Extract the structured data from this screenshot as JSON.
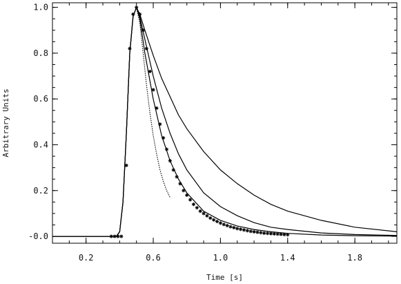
{
  "chart_data": {
    "type": "line",
    "xlabel": "Time [s]",
    "ylabel": "Arbitrary Units",
    "xlim": [
      0.0,
      2.05
    ],
    "ylim": [
      -0.03,
      1.02
    ],
    "x_ticks": [
      0.2,
      0.6,
      1.0,
      1.4,
      1.8
    ],
    "x_tick_labels": [
      "0.2",
      "0.6",
      "1.0",
      "1.4",
      "1.8"
    ],
    "x_minor_step": 0.1,
    "y_ticks": [
      0.0,
      0.2,
      0.4,
      0.6,
      0.8,
      1.0
    ],
    "y_tick_labels": [
      "-0.0",
      "0.2",
      "0.4",
      "0.6",
      "0.8",
      "1.0"
    ],
    "y_minor_step": 0.05,
    "grid": false,
    "legend": "none",
    "series": [
      {
        "style": "markers",
        "marker": "asterisk",
        "x": [
          0.35,
          0.37,
          0.39,
          0.41,
          0.44,
          0.46,
          0.48,
          0.5,
          0.52,
          0.54,
          0.56,
          0.58,
          0.6,
          0.62,
          0.64,
          0.66,
          0.68,
          0.7,
          0.72,
          0.74,
          0.76,
          0.78,
          0.8,
          0.82,
          0.84,
          0.86,
          0.88,
          0.9,
          0.92,
          0.94,
          0.96,
          0.98,
          1.0,
          1.02,
          1.04,
          1.06,
          1.08,
          1.1,
          1.12,
          1.14,
          1.16,
          1.18,
          1.2,
          1.22,
          1.24,
          1.26,
          1.28,
          1.3,
          1.32,
          1.34,
          1.36,
          1.38,
          1.4
        ],
        "y": [
          0.0,
          0.0,
          0.0,
          0.0,
          0.31,
          0.82,
          0.97,
          1.0,
          0.97,
          0.9,
          0.82,
          0.72,
          0.64,
          0.56,
          0.49,
          0.43,
          0.38,
          0.33,
          0.29,
          0.26,
          0.23,
          0.2,
          0.18,
          0.16,
          0.14,
          0.125,
          0.11,
          0.1,
          0.09,
          0.08,
          0.072,
          0.065,
          0.058,
          0.052,
          0.047,
          0.042,
          0.038,
          0.034,
          0.031,
          0.028,
          0.025,
          0.022,
          0.02,
          0.018,
          0.016,
          0.014,
          0.013,
          0.012,
          0.011,
          0.01,
          0.009,
          0.008,
          0.007
        ]
      },
      {
        "style": "solid",
        "x": [
          0.0,
          0.38,
          0.4,
          0.42,
          0.44,
          0.46,
          0.48,
          0.5,
          0.52,
          0.55,
          0.6,
          0.65,
          0.7,
          0.75,
          0.8,
          0.9,
          1.0,
          1.1,
          1.2,
          1.3,
          1.4,
          1.6,
          1.8,
          2.05
        ],
        "y": [
          0.0,
          0.0,
          0.02,
          0.15,
          0.45,
          0.8,
          0.96,
          1.0,
          0.97,
          0.9,
          0.79,
          0.69,
          0.61,
          0.53,
          0.47,
          0.37,
          0.29,
          0.23,
          0.18,
          0.14,
          0.11,
          0.07,
          0.04,
          0.02
        ]
      },
      {
        "style": "solid",
        "x": [
          0.0,
          0.38,
          0.4,
          0.42,
          0.44,
          0.46,
          0.48,
          0.5,
          0.52,
          0.55,
          0.6,
          0.65,
          0.7,
          0.75,
          0.8,
          0.9,
          1.0,
          1.1,
          1.2,
          1.3,
          1.4,
          1.6,
          1.8,
          2.05
        ],
        "y": [
          0.0,
          0.0,
          0.02,
          0.15,
          0.45,
          0.8,
          0.96,
          1.0,
          0.96,
          0.86,
          0.7,
          0.56,
          0.45,
          0.36,
          0.29,
          0.19,
          0.13,
          0.09,
          0.06,
          0.04,
          0.03,
          0.015,
          0.008,
          0.004
        ]
      },
      {
        "style": "solid",
        "x": [
          0.0,
          0.38,
          0.4,
          0.42,
          0.44,
          0.46,
          0.48,
          0.5,
          0.52,
          0.55,
          0.6,
          0.65,
          0.7,
          0.75,
          0.8,
          0.9,
          1.0,
          1.1,
          1.2,
          1.3,
          1.4,
          1.6,
          1.8,
          2.05
        ],
        "y": [
          0.0,
          0.0,
          0.02,
          0.15,
          0.45,
          0.8,
          0.96,
          1.0,
          0.95,
          0.8,
          0.6,
          0.44,
          0.33,
          0.25,
          0.19,
          0.11,
          0.07,
          0.045,
          0.03,
          0.02,
          0.013,
          0.006,
          0.003,
          0.001
        ]
      },
      {
        "style": "dotted",
        "x": [
          0.44,
          0.46,
          0.48,
          0.5,
          0.52,
          0.54,
          0.56,
          0.58,
          0.6,
          0.62,
          0.64,
          0.66,
          0.68,
          0.7
        ],
        "y": [
          0.45,
          0.8,
          0.96,
          1.0,
          0.93,
          0.8,
          0.66,
          0.54,
          0.44,
          0.36,
          0.29,
          0.24,
          0.2,
          0.17
        ]
      }
    ]
  }
}
